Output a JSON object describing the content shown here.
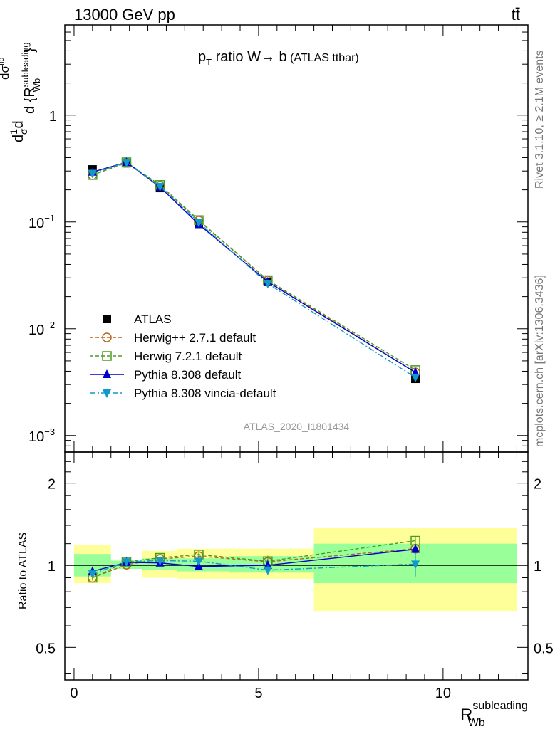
{
  "header": {
    "left": "13000 GeV pp",
    "right": "tt̄"
  },
  "side_labels": {
    "rivet": "Rivet 3.1.10, ≥ 2.1M events",
    "mcplots": "mcplots.cern.ch [arXiv:1306.3436]"
  },
  "chart_data": [
    {
      "type": "line",
      "title_main": "p",
      "title_sub": "T",
      "title_rest": " ratio W→ b",
      "title_small": " (ATLAS ttbar)",
      "watermark": "ATLAS_2020_I1801434",
      "ylabel": {
        "prefix": "d",
        "frac_num": "1",
        "frac_den": "σ",
        "d": "d",
        "num": "dσ",
        "num_sup": "fid",
        "den": "d {R",
        "den_sup": "subleading",
        "den_sub": "Wb",
        "den_end": "}"
      },
      "log_y": true,
      "ylim": [
        0.0007,
        7
      ],
      "xlim": [
        -0.25,
        12.3
      ],
      "y_tick_labels": {
        "1": "1",
        "0.1": "10",
        "0.01": "10",
        "0.001": "10"
      },
      "y_tick_exponents": {
        "0.1": "−1",
        "0.01": "−2",
        "0.001": "−3"
      },
      "x": [
        0.5,
        1.42,
        2.33,
        3.38,
        5.25,
        9.25
      ],
      "x_bin_edges": [
        0,
        1.0,
        1.85,
        2.8,
        4.2,
        6.5,
        12.0
      ],
      "series": [
        {
          "name": "ATLAS",
          "style": "data",
          "marker": "square-filled",
          "color": "#000000",
          "values": [
            0.31,
            0.355,
            0.208,
            0.096,
            0.0275,
            0.0034
          ]
        },
        {
          "name": "Herwig++ 2.7.1 default",
          "style": "dashed",
          "marker": "circle-open",
          "color": "#b5651d",
          "values": [
            0.275,
            0.358,
            0.218,
            0.103,
            0.0283,
            0.0039
          ]
        },
        {
          "name": "Herwig 7.2.1 default",
          "style": "dashed",
          "marker": "square-open",
          "color": "#4a9a22",
          "values": [
            0.275,
            0.362,
            0.222,
            0.104,
            0.0285,
            0.0041
          ]
        },
        {
          "name": "Pythia 8.308 default",
          "style": "solid",
          "marker": "triangle-up",
          "color": "#0000cc",
          "values": [
            0.293,
            0.362,
            0.212,
            0.095,
            0.0275,
            0.0039
          ]
        },
        {
          "name": "Pythia 8.308 vincia-default",
          "style": "dashdot",
          "marker": "triangle-down",
          "color": "#1199cc",
          "values": [
            0.285,
            0.362,
            0.215,
            0.099,
            0.0265,
            0.0035
          ]
        }
      ]
    },
    {
      "type": "line",
      "ylabel": "Ratio to ATLAS",
      "xlabel_main": "R",
      "xlabel_sup": "subleading",
      "xlabel_sub": "Wb",
      "log_y": true,
      "ylim": [
        0.38,
        2.6
      ],
      "xlim": [
        -0.25,
        12.3
      ],
      "y_ticks": [
        0.5,
        1,
        2
      ],
      "y_tick_labels": [
        "0.5",
        "1",
        "2"
      ],
      "x_ticks": [
        0,
        5,
        10
      ],
      "x_tick_labels": [
        "0",
        "5",
        "10"
      ],
      "bands": {
        "edges": [
          0,
          1.0,
          1.85,
          2.8,
          4.2,
          6.5,
          12.0
        ],
        "green": [
          [
            0.91,
            1.1
          ],
          [
            0.97,
            1.04
          ],
          [
            0.96,
            1.06
          ],
          [
            0.95,
            1.06
          ],
          [
            0.94,
            1.08
          ],
          [
            0.86,
            1.2
          ]
        ],
        "yellow": [
          [
            0.86,
            1.19
          ],
          [
            0.97,
            1.04
          ],
          [
            0.9,
            1.13
          ],
          [
            0.89,
            1.15
          ],
          [
            0.89,
            1.15
          ],
          [
            0.68,
            1.37
          ]
        ],
        "green_color": "#99ff99",
        "yellow_color": "#ffff99"
      },
      "x": [
        0.5,
        1.42,
        2.33,
        3.38,
        5.25,
        9.25
      ],
      "series": [
        {
          "name": "Herwig++ 2.7.1 default",
          "values": [
            0.9,
            1.005,
            1.055,
            1.08,
            1.03,
            1.15
          ],
          "err": [
            0.02,
            0.01,
            0.015,
            0.02,
            0.04,
            0.05
          ]
        },
        {
          "name": "Herwig 7.2.1 default",
          "values": [
            0.9,
            1.03,
            1.065,
            1.095,
            1.035,
            1.23
          ],
          "err": [
            0.02,
            0.01,
            0.015,
            0.02,
            0.05,
            0.05
          ]
        },
        {
          "name": "Pythia 8.308 default",
          "values": [
            0.95,
            1.025,
            1.02,
            0.99,
            1.0,
            1.145
          ],
          "err": [
            0.02,
            0.01,
            0.015,
            0.02,
            0.04,
            0.05
          ]
        },
        {
          "name": "Pythia 8.308 vincia-default",
          "values": [
            0.93,
            1.03,
            1.04,
            1.035,
            0.96,
            1.01
          ],
          "err": [
            0.02,
            0.01,
            0.015,
            0.02,
            0.04,
            0.1
          ]
        }
      ]
    }
  ]
}
